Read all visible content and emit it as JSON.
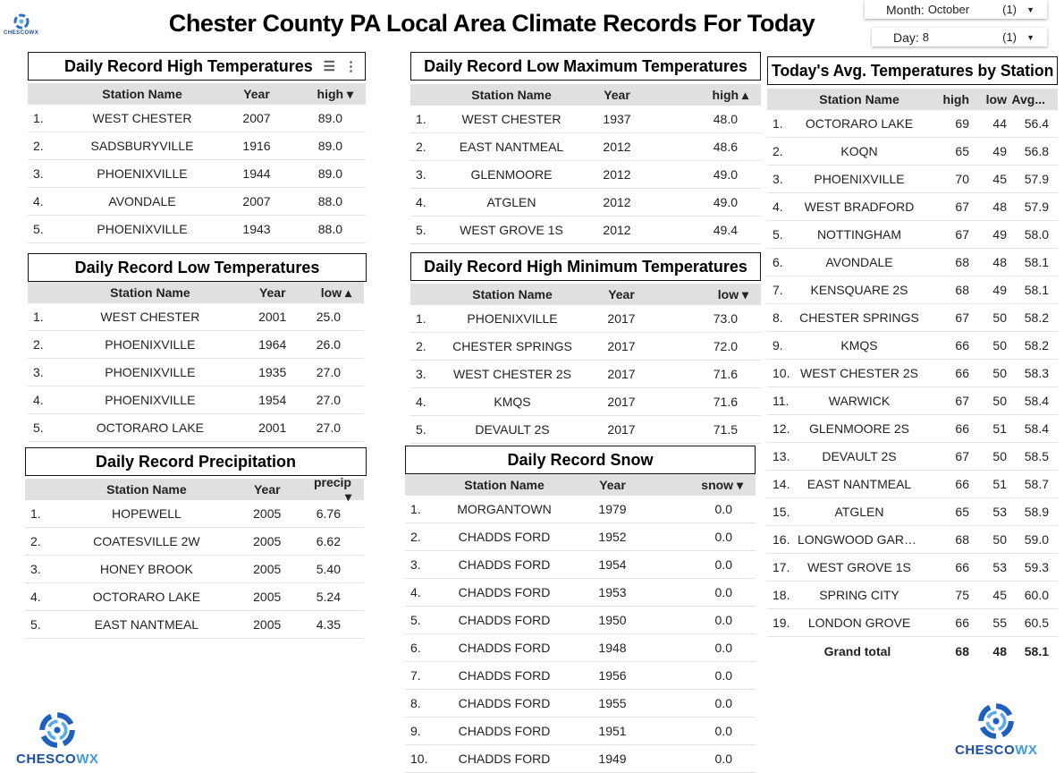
{
  "title": "Chester County PA Local Area Climate Records For Today",
  "logo_text": "CHESCOWX",
  "filters": {
    "month": {
      "label": "Month:",
      "value": "October",
      "count": "(1)"
    },
    "day": {
      "label": "Day:",
      "value": "8",
      "count": "(1)"
    }
  },
  "tables": [
    {
      "id": "high",
      "title": "Daily Record High Temperatures",
      "headers": [
        "Station Name",
        "Year",
        "high ▾"
      ],
      "rows": [
        [
          "1.",
          "WEST CHESTER",
          "2007",
          "89.0"
        ],
        [
          "2.",
          "SADSBURYVILLE",
          "1916",
          "89.0"
        ],
        [
          "3.",
          "PHOENIXVILLE",
          "1944",
          "89.0"
        ],
        [
          "4.",
          "AVONDALE",
          "2007",
          "88.0"
        ],
        [
          "5.",
          "PHOENIXVILLE",
          "1943",
          "88.0"
        ]
      ]
    },
    {
      "id": "low",
      "title": "Daily Record Low Temperatures",
      "headers": [
        "Station Name",
        "Year",
        "low ▴"
      ],
      "rows": [
        [
          "1.",
          "WEST CHESTER",
          "2001",
          "25.0"
        ],
        [
          "2.",
          "PHOENIXVILLE",
          "1964",
          "26.0"
        ],
        [
          "3.",
          "PHOENIXVILLE",
          "1935",
          "27.0"
        ],
        [
          "4.",
          "PHOENIXVILLE",
          "1954",
          "27.0"
        ],
        [
          "5.",
          "OCTORARO LAKE",
          "2001",
          "27.0"
        ]
      ]
    },
    {
      "id": "precip",
      "title": "Daily Record Precipitation",
      "headers": [
        "Station Name",
        "Year",
        "precip ▾"
      ],
      "rows": [
        [
          "1.",
          "HOPEWELL",
          "2005",
          "6.76"
        ],
        [
          "2.",
          "COATESVILLE 2W",
          "2005",
          "6.62"
        ],
        [
          "3.",
          "HONEY BROOK",
          "2005",
          "5.40"
        ],
        [
          "4.",
          "OCTORARO LAKE",
          "2005",
          "5.24"
        ],
        [
          "5.",
          "EAST NANTMEAL",
          "2005",
          "4.35"
        ]
      ]
    },
    {
      "id": "lowmax",
      "title": "Daily Record Low Maximum Temperatures",
      "headers": [
        "Station Name",
        "Year",
        "high ▴"
      ],
      "rows": [
        [
          "1.",
          "WEST CHESTER",
          "1937",
          "48.0"
        ],
        [
          "2.",
          "EAST NANTMEAL",
          "2012",
          "48.6"
        ],
        [
          "3.",
          "GLENMOORE",
          "2012",
          "49.0"
        ],
        [
          "4.",
          "ATGLEN",
          "2012",
          "49.0"
        ],
        [
          "5.",
          "WEST GROVE 1S",
          "2012",
          "49.4"
        ]
      ]
    },
    {
      "id": "highmin",
      "title": "Daily Record High Minimum Temperatures",
      "headers": [
        "Station Name",
        "Year",
        "low ▾"
      ],
      "rows": [
        [
          "1.",
          "PHOENIXVILLE",
          "2017",
          "73.0"
        ],
        [
          "2.",
          "CHESTER SPRINGS",
          "2017",
          "72.0"
        ],
        [
          "3.",
          "WEST CHESTER 2S",
          "2017",
          "71.6"
        ],
        [
          "4.",
          "KMQS",
          "2017",
          "71.6"
        ],
        [
          "5.",
          "DEVAULT 2S",
          "2017",
          "71.5"
        ]
      ]
    },
    {
      "id": "snow",
      "title": "Daily Record Snow",
      "headers": [
        "Station Name",
        "Year",
        "snow ▾"
      ],
      "rows": [
        [
          "1.",
          "MORGANTOWN",
          "1979",
          "0.0"
        ],
        [
          "2.",
          "CHADDS FORD",
          "1952",
          "0.0"
        ],
        [
          "3.",
          "CHADDS FORD",
          "1954",
          "0.0"
        ],
        [
          "4.",
          "CHADDS FORD",
          "1953",
          "0.0"
        ],
        [
          "5.",
          "CHADDS FORD",
          "1950",
          "0.0"
        ],
        [
          "6.",
          "CHADDS FORD",
          "1948",
          "0.0"
        ],
        [
          "7.",
          "CHADDS FORD",
          "1956",
          "0.0"
        ],
        [
          "8.",
          "CHADDS FORD",
          "1955",
          "0.0"
        ],
        [
          "9.",
          "CHADDS FORD",
          "1951",
          "0.0"
        ],
        [
          "10.",
          "CHADDS FORD",
          "1949",
          "0.0"
        ]
      ]
    },
    {
      "id": "avg",
      "title": "Today's Avg. Temperatures by Station",
      "headers": [
        "Station Name",
        "high",
        "low",
        "Avg..."
      ],
      "rows": [
        [
          "1.",
          "OCTORARO LAKE",
          "69",
          "44",
          "56.4"
        ],
        [
          "2.",
          "KOQN",
          "65",
          "49",
          "56.8"
        ],
        [
          "3.",
          "PHOENIXVILLE",
          "70",
          "45",
          "57.9"
        ],
        [
          "4.",
          "WEST BRADFORD",
          "67",
          "48",
          "57.9"
        ],
        [
          "5.",
          "NOTTINGHAM",
          "67",
          "49",
          "58.0"
        ],
        [
          "6.",
          "AVONDALE",
          "68",
          "48",
          "58.1"
        ],
        [
          "7.",
          "KENSQUARE 2S",
          "68",
          "49",
          "58.1"
        ],
        [
          "8.",
          "CHESTER SPRINGS",
          "67",
          "50",
          "58.2"
        ],
        [
          "9.",
          "KMQS",
          "66",
          "50",
          "58.2"
        ],
        [
          "10.",
          "WEST CHESTER 2S",
          "66",
          "50",
          "58.3"
        ],
        [
          "11.",
          "WARWICK",
          "67",
          "50",
          "58.4"
        ],
        [
          "12.",
          "GLENMOORE 2S",
          "66",
          "51",
          "58.4"
        ],
        [
          "13.",
          "DEVAULT 2S",
          "67",
          "50",
          "58.5"
        ],
        [
          "14.",
          "EAST NANTMEAL",
          "66",
          "51",
          "58.7"
        ],
        [
          "15.",
          "ATGLEN",
          "65",
          "53",
          "58.9"
        ],
        [
          "16.",
          "LONGWOOD GARDE...",
          "68",
          "50",
          "59.0"
        ],
        [
          "17.",
          "WEST GROVE 1S",
          "66",
          "53",
          "59.3"
        ],
        [
          "18.",
          "SPRING CITY",
          "75",
          "45",
          "60.0"
        ],
        [
          "19.",
          "LONDON GROVE",
          "66",
          "55",
          "60.5"
        ]
      ],
      "total": [
        "Grand total",
        "68",
        "48",
        "58.1"
      ]
    }
  ]
}
